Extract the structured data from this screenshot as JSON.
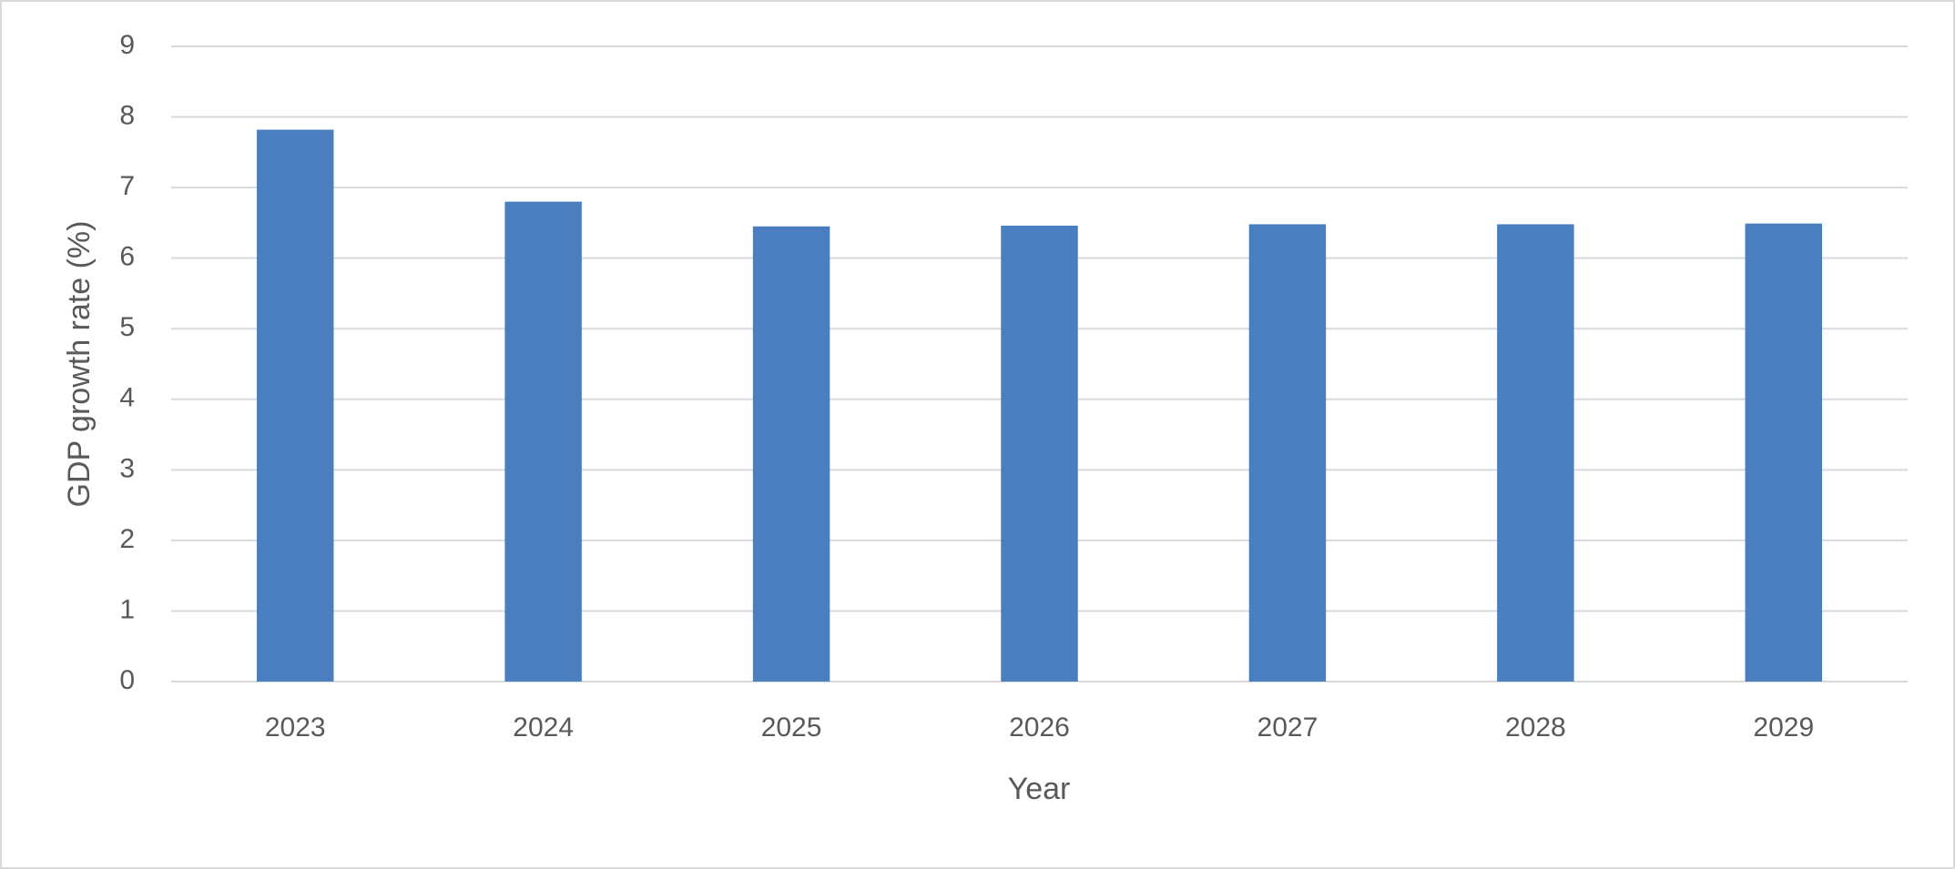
{
  "chart_data": {
    "type": "bar",
    "x_label": "Year",
    "y_label": "GDP growth rate (%)",
    "categories": [
      "2023",
      "2024",
      "2025",
      "2026",
      "2027",
      "2028",
      "2029"
    ],
    "values": [
      7.82,
      6.8,
      6.45,
      6.46,
      6.48,
      6.48,
      6.49
    ],
    "color": "#4a7ebf",
    "ylim": [
      0,
      9
    ],
    "yticks": [
      0,
      1,
      2,
      3,
      4,
      5,
      6,
      7,
      8,
      9
    ],
    "grid": true
  }
}
